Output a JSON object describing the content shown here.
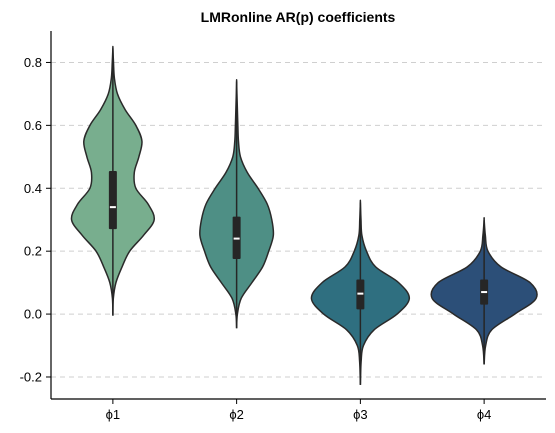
{
  "chart_data": {
    "type": "violin",
    "title": "LMRonline AR(p) coefficients",
    "xlabel": "",
    "ylabel": "",
    "categories": [
      "ϕ1",
      "ϕ2",
      "ϕ3",
      "ϕ4"
    ],
    "ylim": [
      -0.27,
      0.9
    ],
    "yticks": [
      -0.2,
      0.0,
      0.2,
      0.4,
      0.6,
      0.8
    ],
    "ytick_labels": [
      "-0.2",
      "0.0",
      "0.2",
      "0.4",
      "0.6",
      "0.8"
    ],
    "grid": "y-dashed",
    "colors": [
      "#78ae8e",
      "#4e8f85",
      "#2f6f80",
      "#2c4f78"
    ],
    "distributions": [
      {
        "name": "ϕ1",
        "min": -0.005,
        "q1": 0.27,
        "median": 0.34,
        "q3": 0.455,
        "max": 0.845,
        "density": [
          [
            -0.005,
            0.0
          ],
          [
            0.05,
            0.003
          ],
          [
            0.1,
            0.02
          ],
          [
            0.15,
            0.06
          ],
          [
            0.2,
            0.11
          ],
          [
            0.25,
            0.2
          ],
          [
            0.3,
            0.27
          ],
          [
            0.35,
            0.23
          ],
          [
            0.4,
            0.15
          ],
          [
            0.45,
            0.14
          ],
          [
            0.5,
            0.17
          ],
          [
            0.55,
            0.19
          ],
          [
            0.6,
            0.15
          ],
          [
            0.65,
            0.08
          ],
          [
            0.7,
            0.03
          ],
          [
            0.75,
            0.01
          ],
          [
            0.8,
            0.004
          ],
          [
            0.845,
            0.0
          ]
        ]
      },
      {
        "name": "ϕ2",
        "min": -0.045,
        "q1": 0.175,
        "median": 0.24,
        "q3": 0.31,
        "max": 0.74,
        "density": [
          [
            -0.045,
            0.0
          ],
          [
            0.0,
            0.005
          ],
          [
            0.05,
            0.03
          ],
          [
            0.1,
            0.1
          ],
          [
            0.15,
            0.17
          ],
          [
            0.2,
            0.21
          ],
          [
            0.25,
            0.24
          ],
          [
            0.3,
            0.23
          ],
          [
            0.35,
            0.2
          ],
          [
            0.4,
            0.14
          ],
          [
            0.45,
            0.07
          ],
          [
            0.5,
            0.025
          ],
          [
            0.55,
            0.012
          ],
          [
            0.6,
            0.008
          ],
          [
            0.65,
            0.005
          ],
          [
            0.7,
            0.002
          ],
          [
            0.74,
            0.0
          ]
        ]
      },
      {
        "name": "ϕ3",
        "min": -0.225,
        "q1": 0.015,
        "median": 0.065,
        "q3": 0.11,
        "max": 0.355,
        "density": [
          [
            -0.225,
            0.0
          ],
          [
            -0.15,
            0.005
          ],
          [
            -0.1,
            0.02
          ],
          [
            -0.05,
            0.09
          ],
          [
            0.0,
            0.24
          ],
          [
            0.05,
            0.32
          ],
          [
            0.1,
            0.25
          ],
          [
            0.15,
            0.1
          ],
          [
            0.2,
            0.04
          ],
          [
            0.25,
            0.01
          ],
          [
            0.3,
            0.004
          ],
          [
            0.355,
            0.0
          ]
        ]
      },
      {
        "name": "ϕ4",
        "min": -0.16,
        "q1": 0.03,
        "median": 0.07,
        "q3": 0.11,
        "max": 0.3,
        "density": [
          [
            -0.16,
            0.0
          ],
          [
            -0.1,
            0.01
          ],
          [
            -0.05,
            0.05
          ],
          [
            0.0,
            0.2
          ],
          [
            0.05,
            0.34
          ],
          [
            0.1,
            0.3
          ],
          [
            0.15,
            0.11
          ],
          [
            0.2,
            0.025
          ],
          [
            0.25,
            0.008
          ],
          [
            0.3,
            0.0
          ]
        ]
      }
    ]
  }
}
